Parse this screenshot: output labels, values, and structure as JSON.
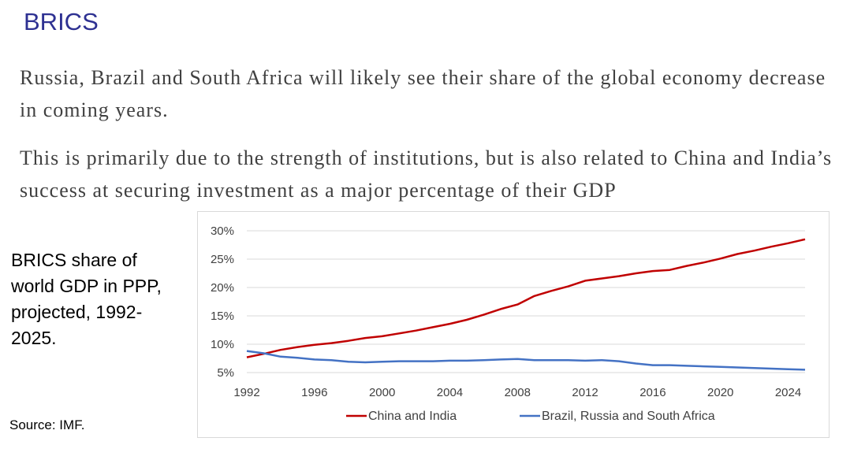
{
  "slide": {
    "title": "BRICS",
    "paragraph1": "Russia, Brazil and South Africa will likely see their share of the global economy decrease in coming years.",
    "paragraph2": "This is primarily due to the strength of institutions, but is also related to China and India’s success at securing investment as a major percentage of their GDP",
    "side_caption": "BRICS share of world GDP in PPP, projected, 1992-2025.",
    "source": "Source: IMF.",
    "title_color": "#2e3192"
  },
  "chart_data": {
    "type": "line",
    "title": "",
    "xlabel": "",
    "ylabel": "",
    "x": [
      1992,
      1993,
      1994,
      1995,
      1996,
      1997,
      1998,
      1999,
      2000,
      2001,
      2002,
      2003,
      2004,
      2005,
      2006,
      2007,
      2008,
      2009,
      2010,
      2011,
      2012,
      2013,
      2014,
      2015,
      2016,
      2017,
      2018,
      2019,
      2020,
      2021,
      2022,
      2023,
      2024,
      2025
    ],
    "x_ticks": [
      "1992",
      "1996",
      "2000",
      "2004",
      "2008",
      "2012",
      "2016",
      "2020",
      "2024"
    ],
    "y_ticks": [
      "5%",
      "10%",
      "15%",
      "20%",
      "25%",
      "30%"
    ],
    "ylim": [
      5,
      30
    ],
    "xlim": [
      1992,
      2025
    ],
    "grid": "horizontal",
    "legend_position": "bottom",
    "series": [
      {
        "name": "China and India",
        "color": "#c00000",
        "values": [
          7.7,
          8.3,
          9.0,
          9.5,
          9.9,
          10.2,
          10.6,
          11.1,
          11.4,
          11.9,
          12.4,
          13.0,
          13.6,
          14.3,
          15.2,
          16.2,
          17.0,
          18.5,
          19.4,
          20.2,
          21.2,
          21.6,
          22.0,
          22.5,
          22.9,
          23.1,
          23.8,
          24.4,
          25.1,
          25.9,
          26.5,
          27.2,
          27.8,
          28.5
        ]
      },
      {
        "name": "Brazil, Russia and South Africa",
        "color": "#4472c4",
        "values": [
          8.8,
          8.4,
          7.8,
          7.6,
          7.3,
          7.2,
          6.9,
          6.8,
          6.9,
          7.0,
          7.0,
          7.0,
          7.1,
          7.1,
          7.2,
          7.3,
          7.4,
          7.2,
          7.2,
          7.2,
          7.1,
          7.2,
          7.0,
          6.6,
          6.3,
          6.3,
          6.2,
          6.1,
          6.0,
          5.9,
          5.8,
          5.7,
          5.6,
          5.5
        ]
      }
    ]
  }
}
